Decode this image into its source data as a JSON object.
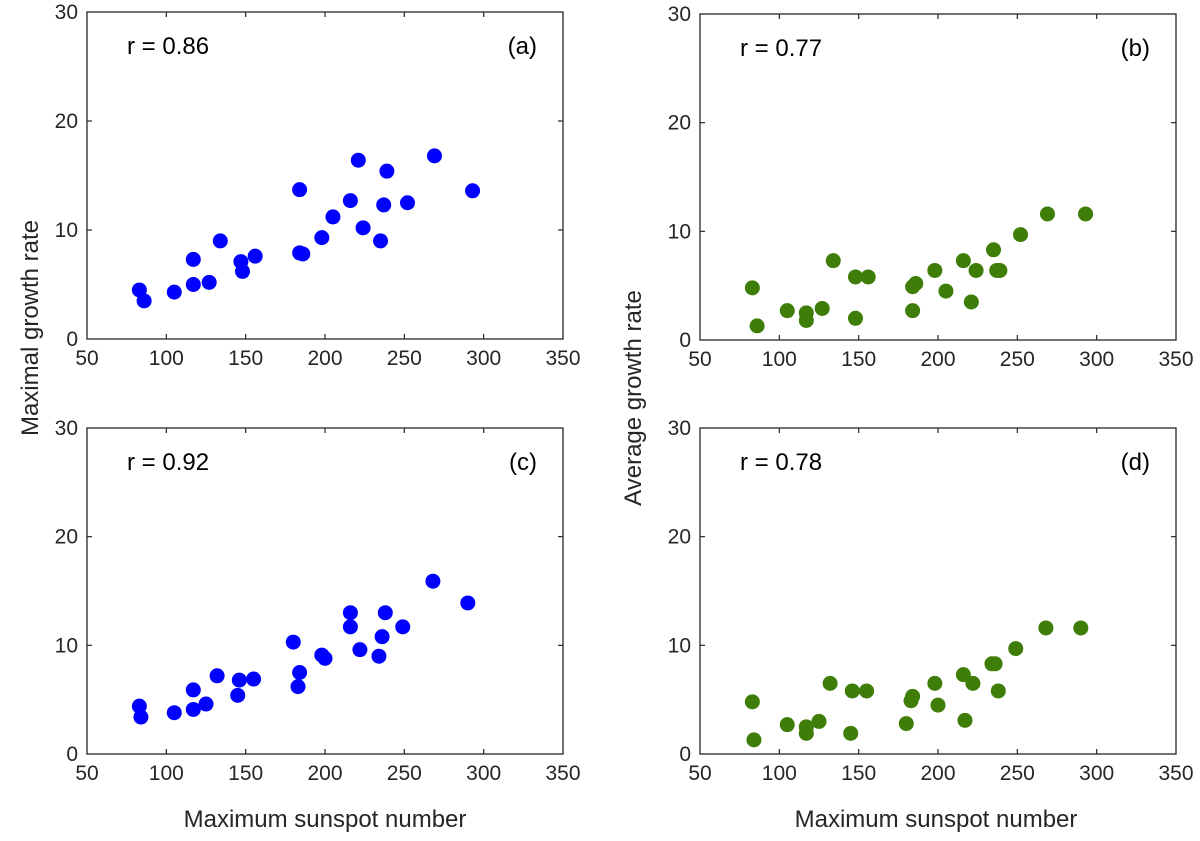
{
  "figure": {
    "ylabel_left": "Maximal growth rate",
    "ylabel_right": "Average growth rate",
    "xlabel": "Maximum sunspot number"
  },
  "chart_data": [
    {
      "type": "scatter",
      "panel": "(a)",
      "annotation": "r = 0.86",
      "color": "#0000ff",
      "xlim": [
        50,
        350
      ],
      "ylim": [
        0,
        30
      ],
      "xticks": [
        50,
        100,
        150,
        200,
        250,
        300,
        350
      ],
      "yticks": [
        0,
        10,
        20,
        30
      ],
      "points": [
        [
          83,
          4.5
        ],
        [
          86,
          3.5
        ],
        [
          105,
          4.3
        ],
        [
          117,
          7.3
        ],
        [
          117,
          5.0
        ],
        [
          127,
          5.2
        ],
        [
          134,
          9.0
        ],
        [
          147,
          7.1
        ],
        [
          148,
          6.2
        ],
        [
          156,
          7.6
        ],
        [
          184,
          13.7
        ],
        [
          184,
          7.9
        ],
        [
          186,
          7.8
        ],
        [
          198,
          9.3
        ],
        [
          205,
          11.2
        ],
        [
          216,
          12.7
        ],
        [
          221,
          16.4
        ],
        [
          224,
          10.2
        ],
        [
          235,
          9.0
        ],
        [
          237,
          12.3
        ],
        [
          239,
          15.4
        ],
        [
          252,
          12.5
        ],
        [
          269,
          16.8
        ],
        [
          293,
          13.6
        ]
      ]
    },
    {
      "type": "scatter",
      "panel": "(b)",
      "annotation": "r = 0.77",
      "color": "#3d7d08",
      "xlim": [
        50,
        350
      ],
      "ylim": [
        0,
        30
      ],
      "xticks": [
        50,
        100,
        150,
        200,
        250,
        300,
        350
      ],
      "yticks": [
        0,
        10,
        20,
        30
      ],
      "points": [
        [
          83,
          4.8
        ],
        [
          86,
          1.3
        ],
        [
          105,
          2.7
        ],
        [
          117,
          2.5
        ],
        [
          117,
          1.8
        ],
        [
          127,
          2.9
        ],
        [
          134,
          7.3
        ],
        [
          148,
          5.8
        ],
        [
          148,
          2.0
        ],
        [
          156,
          5.8
        ],
        [
          184,
          2.7
        ],
        [
          184,
          4.9
        ],
        [
          186,
          5.2
        ],
        [
          198,
          6.4
        ],
        [
          205,
          4.5
        ],
        [
          216,
          7.3
        ],
        [
          221,
          3.5
        ],
        [
          224,
          6.4
        ],
        [
          235,
          8.3
        ],
        [
          237,
          6.4
        ],
        [
          239,
          6.4
        ],
        [
          252,
          9.7
        ],
        [
          269,
          11.6
        ],
        [
          293,
          11.6
        ]
      ]
    },
    {
      "type": "scatter",
      "panel": "(c)",
      "annotation": "r = 0.92",
      "color": "#0000ff",
      "xlim": [
        50,
        350
      ],
      "ylim": [
        0,
        30
      ],
      "xticks": [
        50,
        100,
        150,
        200,
        250,
        300,
        350
      ],
      "yticks": [
        0,
        10,
        20,
        30
      ],
      "points": [
        [
          83,
          4.4
        ],
        [
          84,
          3.4
        ],
        [
          105,
          3.8
        ],
        [
          117,
          5.9
        ],
        [
          117,
          4.1
        ],
        [
          125,
          4.6
        ],
        [
          132,
          7.2
        ],
        [
          145,
          5.4
        ],
        [
          146,
          6.8
        ],
        [
          155,
          6.9
        ],
        [
          180,
          10.3
        ],
        [
          183,
          6.2
        ],
        [
          184,
          7.5
        ],
        [
          198,
          9.1
        ],
        [
          200,
          8.8
        ],
        [
          216,
          11.7
        ],
        [
          216,
          13.0
        ],
        [
          222,
          9.6
        ],
        [
          234,
          9.0
        ],
        [
          236,
          10.8
        ],
        [
          238,
          13.0
        ],
        [
          249,
          11.7
        ],
        [
          268,
          15.9
        ],
        [
          290,
          13.9
        ]
      ]
    },
    {
      "type": "scatter",
      "panel": "(d)",
      "annotation": "r = 0.78",
      "color": "#3d7d08",
      "xlim": [
        50,
        350
      ],
      "ylim": [
        0,
        30
      ],
      "xticks": [
        50,
        100,
        150,
        200,
        250,
        300,
        350
      ],
      "yticks": [
        0,
        10,
        20,
        30
      ],
      "points": [
        [
          83,
          4.8
        ],
        [
          84,
          1.3
        ],
        [
          105,
          2.7
        ],
        [
          117,
          2.5
        ],
        [
          117,
          1.9
        ],
        [
          125,
          3.0
        ],
        [
          132,
          6.5
        ],
        [
          145,
          1.9
        ],
        [
          146,
          5.8
        ],
        [
          155,
          5.8
        ],
        [
          180,
          2.8
        ],
        [
          183,
          4.9
        ],
        [
          184,
          5.3
        ],
        [
          198,
          6.5
        ],
        [
          200,
          4.5
        ],
        [
          216,
          7.3
        ],
        [
          217,
          3.1
        ],
        [
          222,
          6.5
        ],
        [
          234,
          8.3
        ],
        [
          236,
          8.3
        ],
        [
          238,
          5.8
        ],
        [
          249,
          9.7
        ],
        [
          268,
          11.6
        ],
        [
          290,
          11.6
        ]
      ]
    }
  ]
}
